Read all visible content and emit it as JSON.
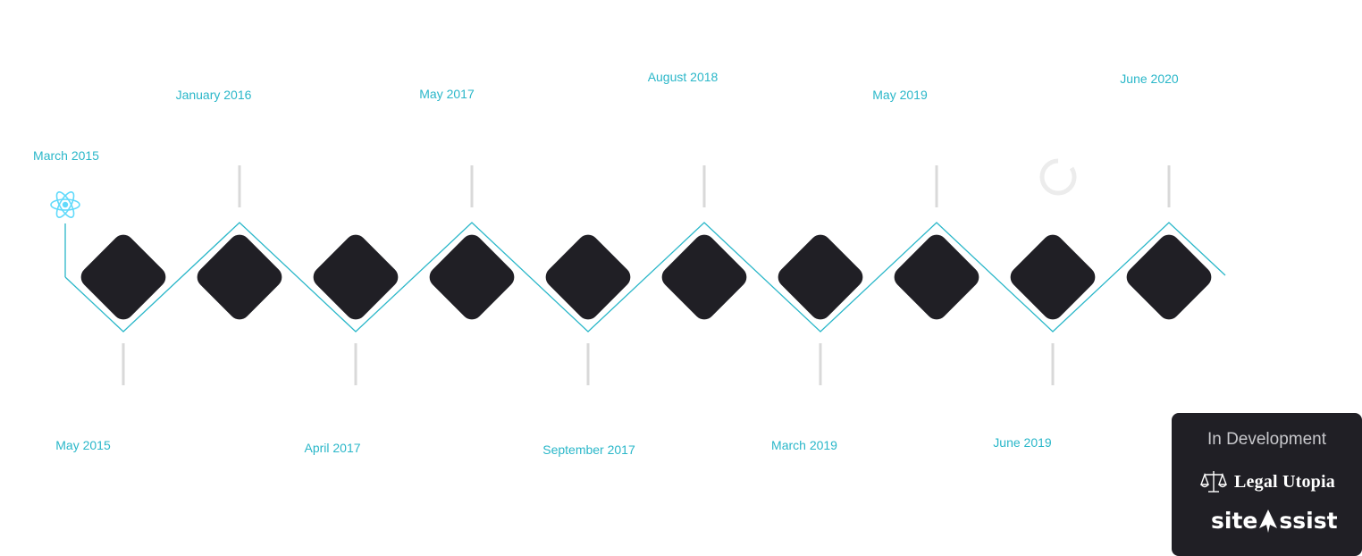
{
  "timeline": {
    "nodes": [
      {
        "label": "May 2015",
        "label_side": "below",
        "icon": "react-icon"
      },
      {
        "label": "January 2016",
        "label_side": "above"
      },
      {
        "label": "April 2017",
        "label_side": "below"
      },
      {
        "label": "May 2017",
        "label_side": "above"
      },
      {
        "label": "September 2017",
        "label_side": "below"
      },
      {
        "label": "August 2018",
        "label_side": "above"
      },
      {
        "label": "March 2019",
        "label_side": "below"
      },
      {
        "label": "May 2019",
        "label_side": "above"
      },
      {
        "label": "June 2019",
        "label_side": "below"
      },
      {
        "label": "June 2020",
        "label_side": "above"
      }
    ],
    "start_label": "March 2015",
    "start_icon": "react-icon",
    "spinner_icon": "loading-spinner-icon"
  },
  "colors": {
    "accent": "#2ab7c9",
    "diamond": "#201f25",
    "connector": "#d9d9d9",
    "panel": "#201f25"
  },
  "panel": {
    "title": "In Development",
    "logos": [
      {
        "name": "Legal Utopia",
        "icon": "scales-icon"
      },
      {
        "name": "site",
        "name_suffix": "ssist",
        "icon": "a-cursor-icon"
      }
    ]
  }
}
